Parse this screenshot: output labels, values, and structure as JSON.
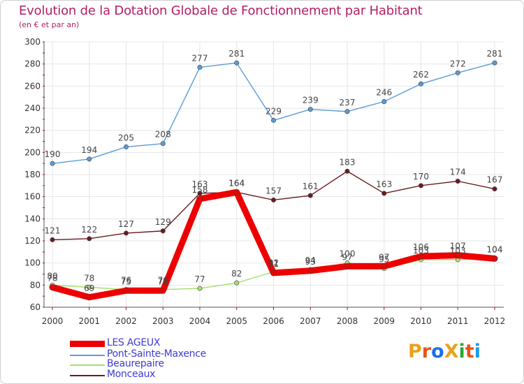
{
  "title": "Evolution de la Dotation Globale de Fonctionnement par Habitant",
  "subtitle": "(en € et par an)",
  "brand": "ProXiti",
  "brand_colors": [
    "#e8a21b",
    "#e8541b",
    "#1b6fe8",
    "#e8a21b",
    "#27a83a",
    "#e8541b",
    "#1b9be8"
  ],
  "chart_data": {
    "type": "line",
    "title": "Evolution de la Dotation Globale de Fonctionnement par Habitant",
    "xlabel": "",
    "ylabel": "(en € et par an)",
    "x": [
      "2000",
      "2001",
      "2002",
      "2003",
      "2004",
      "2005",
      "2006",
      "2007",
      "2008",
      "2009",
      "2010",
      "2011",
      "2012"
    ],
    "ylim": [
      60,
      300
    ],
    "yticks": [
      60,
      80,
      100,
      120,
      140,
      160,
      180,
      200,
      220,
      240,
      260,
      280,
      300
    ],
    "grid": true,
    "legend_position": "bottom-left",
    "series": [
      {
        "name": "Monceaux",
        "color": "#6b1a1f",
        "values": [
          121,
          122,
          127,
          129,
          163,
          164,
          157,
          161,
          183,
          163,
          170,
          174,
          167
        ]
      },
      {
        "name": "Pont-Sainte-Maxence",
        "color": "#5b9bd5",
        "values": [
          190,
          194,
          205,
          208,
          277,
          281,
          229,
          239,
          237,
          246,
          262,
          272,
          281
        ]
      },
      {
        "name": "Beaurepaire",
        "color": "#a6de6e",
        "values": [
          80,
          78,
          76,
          76,
          77,
          82,
          92,
          94,
          100,
          95,
          103,
          103,
          104
        ]
      },
      {
        "name": "LES AGEUX",
        "color": "#ee0000",
        "values": [
          78,
          69,
          75,
          75,
          158,
          164,
          91,
          93,
          97,
          97,
          106,
          107,
          104
        ]
      }
    ],
    "legend": [
      "LES AGEUX",
      "Pont-Sainte-Maxence",
      "Beaurepaire",
      "Monceaux"
    ]
  }
}
